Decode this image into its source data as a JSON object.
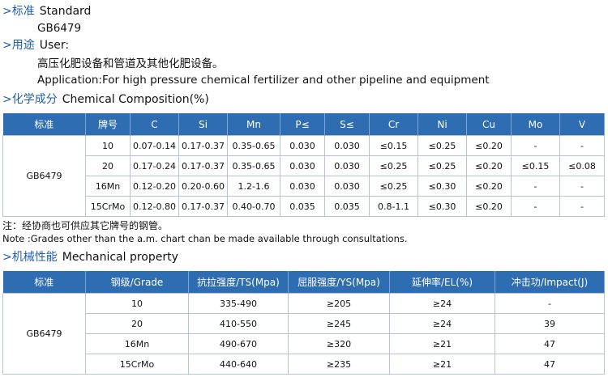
{
  "standard": {
    "cn": ">标准",
    "en": "Standard",
    "value": "GB6479"
  },
  "usage": {
    "cn": ">用途",
    "en": "User:",
    "lines": [
      "高压化肥设备和管道及其他化肥设备。",
      "Application:For high pressure chemical fertilizer and other pipeline and equipment"
    ]
  },
  "chemical": {
    "cn": ">化学成分",
    "en": "Chemical Composition(%)",
    "table": {
      "headers": [
        "标准",
        "牌号",
        "C",
        "Si",
        "Mn",
        "P≤",
        "S≤",
        "Cr",
        "Ni",
        "Cu",
        "Mo",
        "V"
      ],
      "standard": "GB6479",
      "rows": [
        [
          "10",
          "0.07-0.14",
          "0.17-0.37",
          "0.35-0.65",
          "0.030",
          "0.030",
          "≤0.15",
          "≤0.25",
          "≤0.20",
          "-",
          "-"
        ],
        [
          "20",
          "0.17-0.24",
          "0.17-0.37",
          "0.35-0.65",
          "0.030",
          "0.030",
          "≤0.25",
          "≤0.25",
          "≤0.20",
          "≤0.15",
          "≤0.08"
        ],
        [
          "16Mn",
          "0.12-0.20",
          "0.20-0.60",
          "1.2-1.6",
          "0.030",
          "0.030",
          "≤0.25",
          "≤0.30",
          "≤0.20",
          "-",
          "-"
        ],
        [
          "15CrMo",
          "0.12-0.80",
          "0.17-0.37",
          "0.40-0.70",
          "0.035",
          "0.035",
          "0.8-1.1",
          "≤0.30",
          "≤0.20",
          "-",
          "-"
        ]
      ]
    }
  },
  "notes": [
    "注：经协商也可供应其它牌号的钢管。",
    "Note :Grades other than the a.m. chart chan be made available through consultations."
  ],
  "mechanical": {
    "cn": ">机械性能",
    "en": "Mechanical property",
    "table": {
      "headers": [
        "标准",
        "钢级/Grade",
        "抗拉强度/TS(Mpa)",
        "屈服强度/YS(Mpa)",
        "延伸率/EL(%)",
        "冲击功/Impact(J)"
      ],
      "standard": "GB6479",
      "rows": [
        [
          "10",
          "335-490",
          "≥205",
          "≥24",
          "-"
        ],
        [
          "20",
          "410-550",
          "≥245",
          "≥24",
          "39"
        ],
        [
          "16Mn",
          "490-670",
          "≥320",
          "≥21",
          "47"
        ],
        [
          "15CrMo",
          "440-640",
          "≥235",
          "≥21",
          "47"
        ]
      ]
    }
  }
}
